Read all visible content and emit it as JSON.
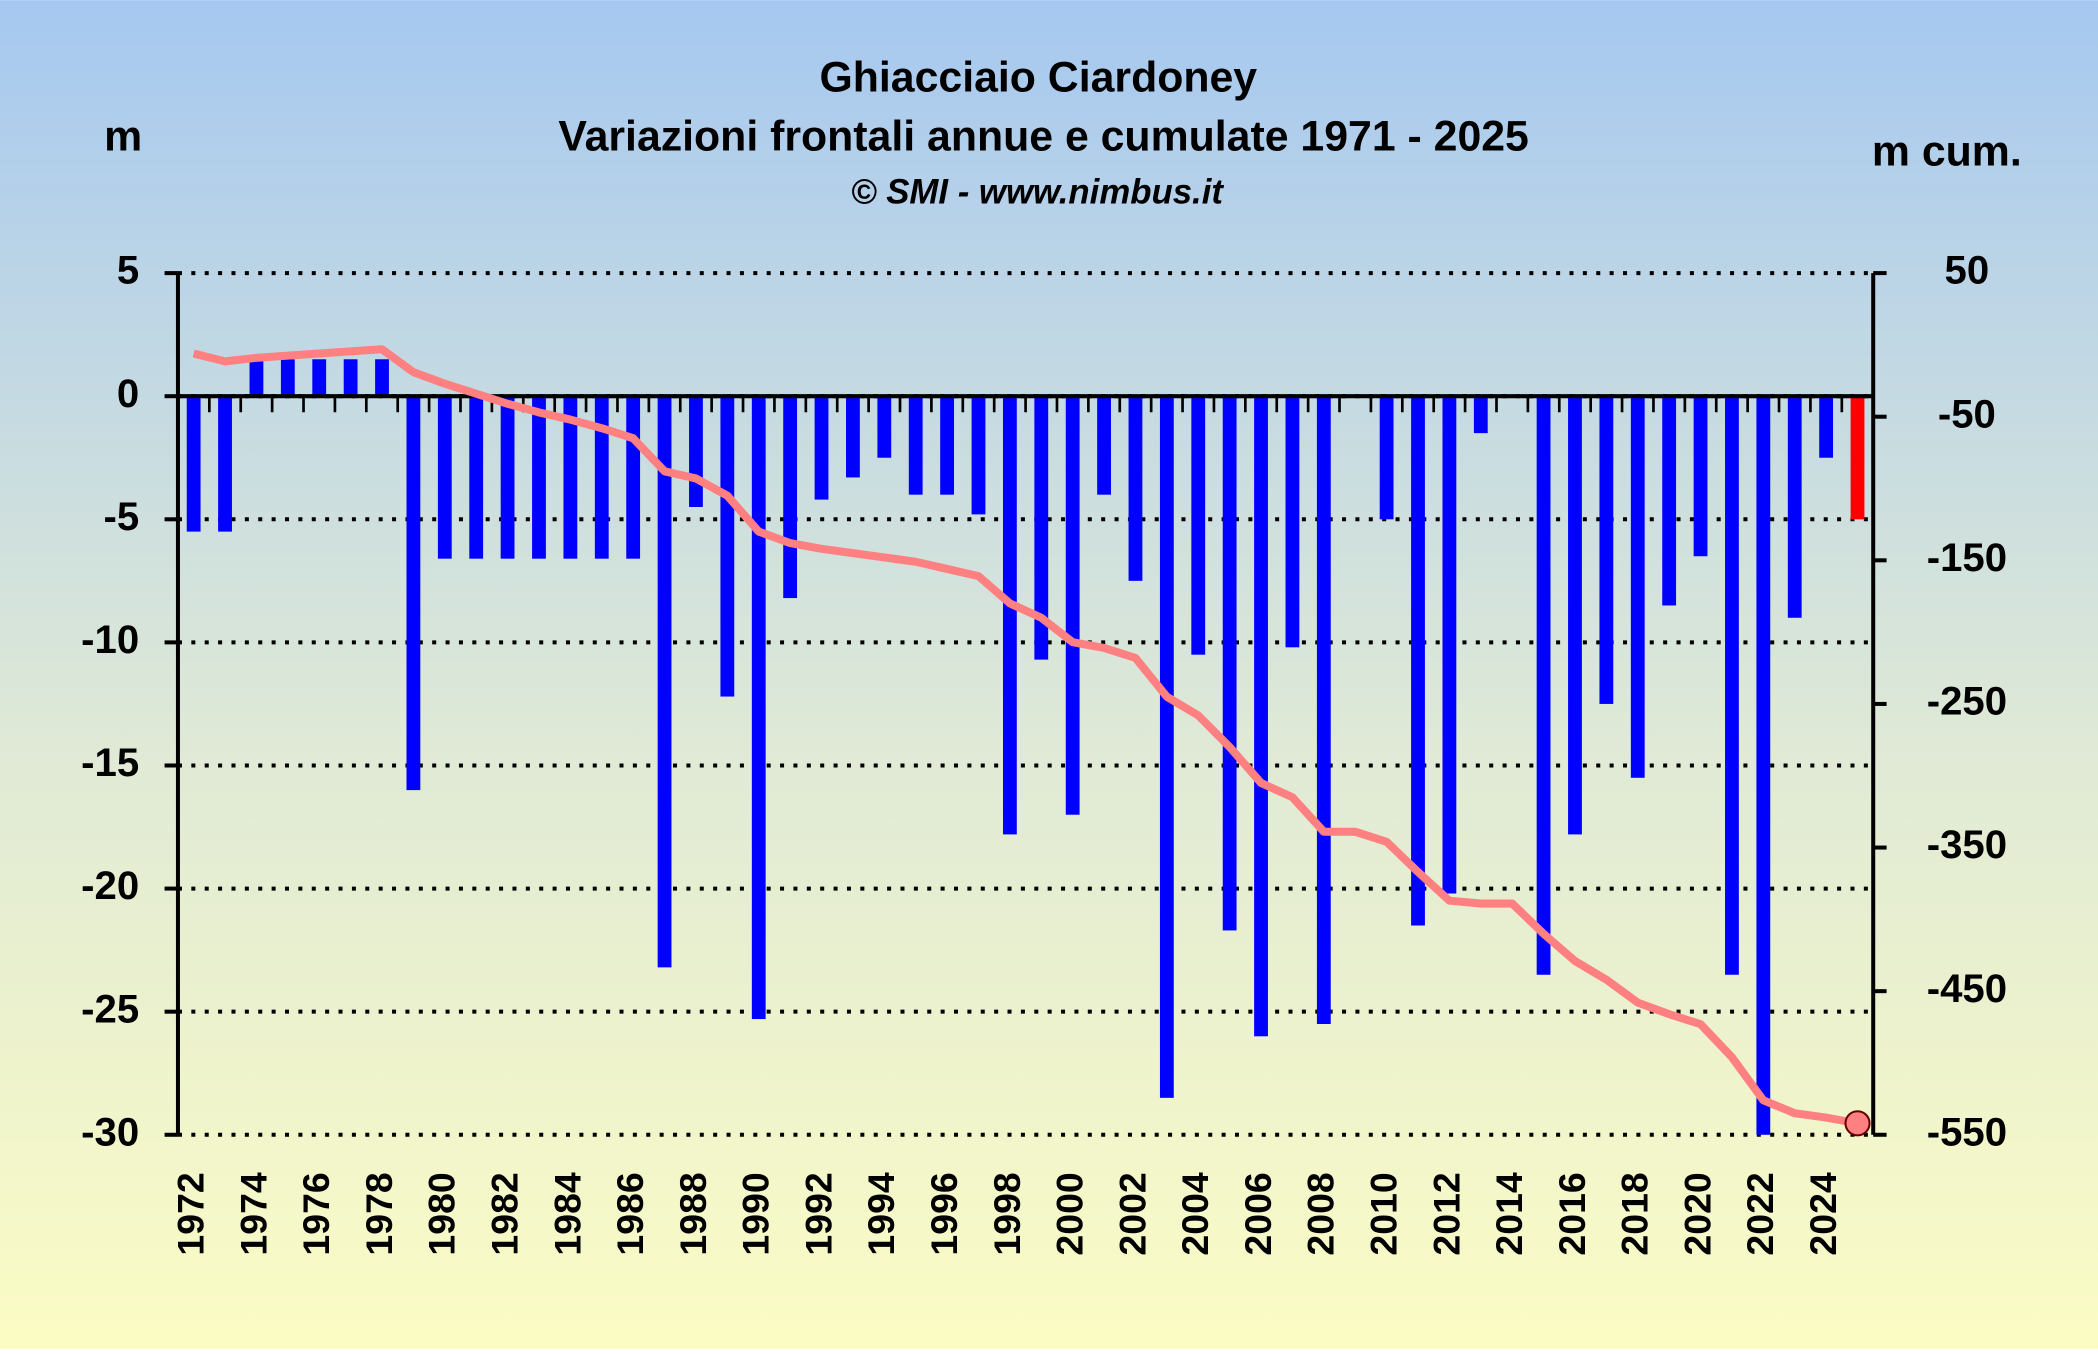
{
  "chart_data": {
    "type": "bar",
    "title": "Ghiacciaio Ciardoney",
    "subtitle": "Variazioni frontali annue e cumulate 1971 - 2025",
    "credit": "© SMI - www.nimbus.it",
    "y_label": "m",
    "y2_label": "m cum.",
    "categories": [
      "1972",
      null,
      "1974",
      null,
      "1976",
      null,
      "1978",
      null,
      "1980",
      null,
      "1982",
      null,
      "1984",
      null,
      "1986",
      null,
      "1988",
      null,
      "1990",
      null,
      "1992",
      null,
      "1994",
      null,
      "1996",
      null,
      "1998",
      null,
      "2000",
      null,
      "2002",
      null,
      "2004",
      null,
      "2006",
      null,
      "2008",
      null,
      "2010",
      null,
      "2012",
      null,
      "2014",
      null,
      "2016",
      null,
      "2018",
      null,
      "2020",
      null,
      "2022",
      null,
      "2024",
      null
    ],
    "series": [
      {
        "type": "bar",
        "axis": "y",
        "color": "#0000ff",
        "last_color": "#ff0000",
        "values": [
          -5.5,
          -5.5,
          1.5,
          1.5,
          1.5,
          1.5,
          1.5,
          -16,
          -6.6,
          -6.6,
          -6.6,
          -6.6,
          -6.6,
          -6.6,
          -6.6,
          -23.2,
          -4.5,
          -12.2,
          -25.3,
          -8.2,
          -4.2,
          -3.3,
          -2.5,
          -4,
          -4,
          -4.8,
          -17.8,
          -10.7,
          -17,
          -4,
          -7.5,
          -28.5,
          -10.5,
          -21.7,
          -26,
          -10.2,
          -25.5,
          0,
          -5,
          -21.5,
          -20.2,
          -1.5,
          0,
          -23.5,
          -17.8,
          -12.5,
          -15.5,
          -8.5,
          -6.5,
          -23.5,
          -30,
          -9,
          -2.5,
          -5
        ]
      },
      {
        "type": "line",
        "axis": "y2",
        "color": "#ff8080",
        "values": [
          -6,
          -11.5,
          -9,
          -7.5,
          -6,
          -4.5,
          -3,
          -19,
          -27,
          -34,
          -41,
          -47,
          -52,
          -58,
          -65,
          -88,
          -93,
          -105,
          -130,
          -138,
          -142,
          -145,
          -148,
          -151,
          -156,
          -161,
          -180,
          -190,
          -207,
          -211,
          -218,
          -245,
          -258,
          -280,
          -305,
          -315,
          -339,
          -339,
          -346,
          -367,
          -387,
          -389,
          -389,
          -410,
          -429,
          -442,
          -458,
          -466,
          -473,
          -496,
          -526,
          -535,
          -538,
          -542
        ]
      }
    ],
    "ylim": [
      -30,
      5
    ],
    "yticks": [
      5,
      0,
      -5,
      -10,
      -15,
      -20,
      -25,
      -30
    ],
    "y2lim": [
      -550,
      50
    ],
    "y2ticks": [
      50,
      -50,
      -150,
      -250,
      -350,
      -450,
      -550
    ],
    "grid": true
  }
}
